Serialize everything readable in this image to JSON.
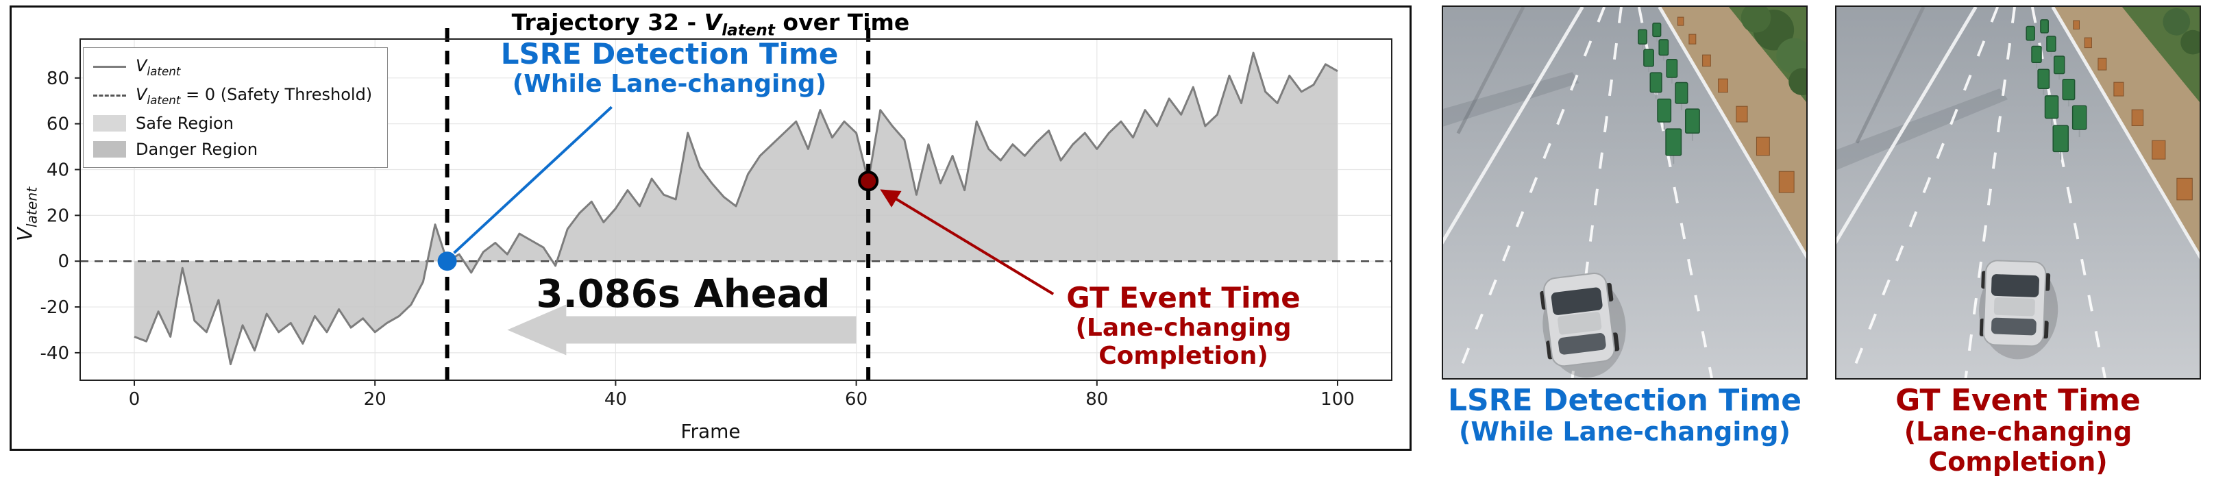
{
  "plot": {
    "title": {
      "prefix": "Trajectory 32 - ",
      "var": "V",
      "sub": "latent",
      "suffix": " over Time"
    },
    "ylabel": {
      "var": "V",
      "sub": "latent"
    },
    "xlabel": "Frame",
    "legend": {
      "vlatent": {
        "var": "V",
        "sub": "latent"
      },
      "threshold": {
        "var": "V",
        "sub": "latent",
        "rest": " = 0 (Safety Threshold)"
      },
      "safe": "Safe Region",
      "danger": "Danger Region"
    },
    "annotations": {
      "lsre_line1": "LSRE Detection Time",
      "lsre_line2": "(While Lane-changing)",
      "gt_line1": "GT Event Time",
      "gt_line2": "(Lane-changing Completion)",
      "ahead": "3.086s Ahead"
    }
  },
  "panels": {
    "lsre": {
      "caption_line1": "LSRE Detection Time",
      "caption_line2": "(While Lane-changing)"
    },
    "gt": {
      "caption_line1": "GT Event Time",
      "caption_line2": "(Lane-changing Completion)"
    }
  },
  "colors": {
    "accent_blue": "#0e6ecd",
    "accent_red": "#a40000",
    "dot_red": "#8b0000",
    "curve_gray": "#7d7d7d",
    "region_gray": "#c6c6c6"
  },
  "chart_data": {
    "type": "line",
    "title": "Trajectory 32 - V_latent over Time",
    "xlabel": "Frame",
    "ylabel": "V_latent",
    "x_is_frame_index": true,
    "values": [
      -33,
      -35,
      -22,
      -33,
      -3,
      -26,
      -31,
      -17,
      -45,
      -28,
      -39,
      -23,
      -31,
      -27,
      -36,
      -24,
      -31,
      -21,
      -29,
      -25,
      -31,
      -27,
      -24,
      -19,
      -9,
      16,
      0,
      3,
      -5,
      4,
      8,
      3,
      12,
      9,
      6,
      -2,
      14,
      21,
      26,
      17,
      23,
      31,
      24,
      36,
      29,
      27,
      56,
      41,
      34,
      28,
      24,
      38,
      46,
      51,
      56,
      61,
      49,
      66,
      54,
      61,
      56,
      35,
      66,
      59,
      53,
      29,
      51,
      34,
      46,
      31,
      61,
      49,
      44,
      51,
      46,
      52,
      57,
      44,
      51,
      56,
      49,
      56,
      61,
      54,
      66,
      59,
      71,
      64,
      76,
      59,
      64,
      81,
      69,
      91,
      74,
      69,
      81,
      74,
      77,
      86,
      83
    ],
    "xlim": [
      -4.5,
      104.5
    ],
    "ylim": [
      -52,
      97
    ],
    "xticks": [
      0,
      20,
      40,
      60,
      80,
      100
    ],
    "yticks": [
      -40,
      -20,
      0,
      20,
      40,
      60,
      80
    ],
    "threshold": 0,
    "grid": true,
    "legend_position": "upper left",
    "legend": [
      "V_latent",
      "V_latent = 0 (Safety Threshold)",
      "Safe Region",
      "Danger Region"
    ],
    "event_lines": [
      26,
      61
    ],
    "markers": {
      "lsre_detection": {
        "frame": 26,
        "value": 0,
        "color": "#0e6ecd",
        "label": "LSRE Detection Time (While Lane-changing)"
      },
      "gt_event": {
        "frame": 61,
        "value": 35,
        "color": "#8b0000",
        "label": "GT Event Time (Lane-changing Completion)"
      }
    },
    "lead_time_label": "3.086s Ahead"
  }
}
